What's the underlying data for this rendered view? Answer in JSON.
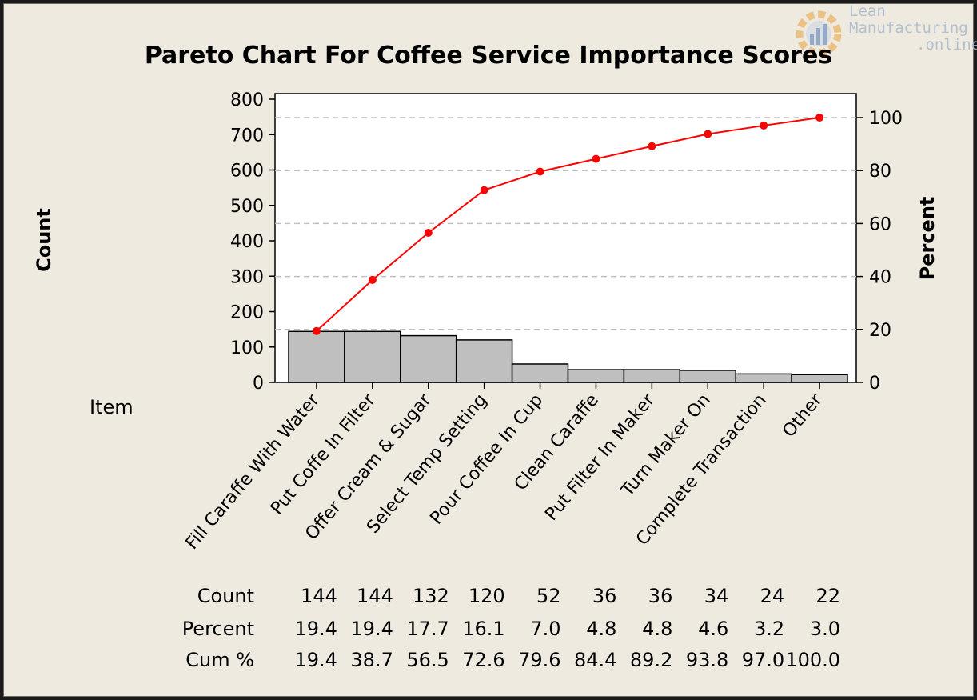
{
  "chart_data": {
    "type": "bar",
    "title": "Pareto Chart For Coffee Service Importance Scores",
    "ylabel": "Count",
    "y2label": "Percent",
    "item_label": "Item",
    "categories": [
      "Fill Caraffe With Water",
      "Put Coffe In Filter",
      "Offer Cream & Sugar",
      "Select Temp Setting",
      "Pour Coffee In Cup",
      "Clean Caraffe",
      "Put Filter In Maker",
      "Turn Maker On",
      "Complete Transaction",
      "Other"
    ],
    "series": [
      {
        "name": "Count",
        "type": "bar",
        "axis": "left",
        "values": [
          144,
          144,
          132,
          120,
          52,
          36,
          36,
          34,
          24,
          22
        ]
      },
      {
        "name": "Cum %",
        "type": "line",
        "axis": "right",
        "values": [
          19.4,
          38.7,
          56.5,
          72.6,
          79.6,
          84.4,
          89.2,
          93.8,
          97.0,
          100.0
        ]
      }
    ],
    "ylim": [
      0,
      800
    ],
    "y2lim": [
      0,
      107.3
    ],
    "yticks": [
      "0",
      "100",
      "200",
      "300",
      "400",
      "500",
      "600",
      "700",
      "800"
    ],
    "y2ticks": [
      "0",
      "20",
      "40",
      "60",
      "80",
      "100"
    ],
    "grid": "dashed horizontal at right-axis ticks",
    "table": {
      "row_labels": [
        "Count",
        "Percent",
        "Cum %"
      ],
      "rows": [
        [
          "144",
          "144",
          "132",
          "120",
          "52",
          "36",
          "36",
          "34",
          "24",
          "22"
        ],
        [
          "19.4",
          "19.4",
          "17.7",
          "16.1",
          "7.0",
          "4.8",
          "4.8",
          "4.6",
          "3.2",
          "3.0"
        ],
        [
          "19.4",
          "38.7",
          "56.5",
          "72.6",
          "79.6",
          "84.4",
          "89.2",
          "93.8",
          "97.0",
          "100.0"
        ]
      ]
    },
    "colors": {
      "bar_fill": "#bfbfbf",
      "bar_stroke": "#000000",
      "line": "#ff0000",
      "grid": "#c0c0c0",
      "background": "#efeae0",
      "plot_bg": "#ffffff"
    }
  },
  "watermark": {
    "lines": [
      "Lean",
      "Manufacturing",
      ".online"
    ],
    "icon": "gear-chart-icon"
  }
}
